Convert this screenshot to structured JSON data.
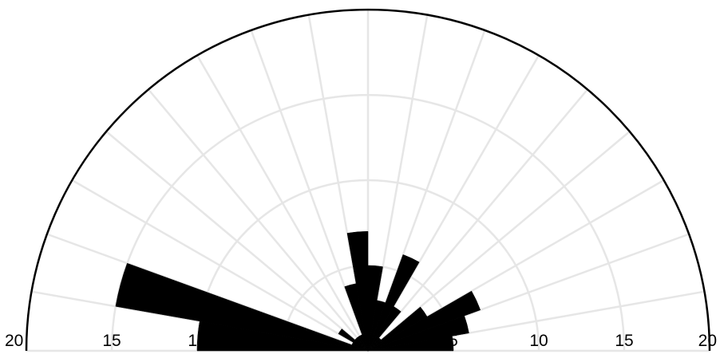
{
  "chart_data": {
    "type": "polar-histogram",
    "theta_range_deg": [
      0,
      180
    ],
    "bin_width_deg": 10,
    "r_max": 20,
    "r_grid": [
      5,
      10,
      15,
      20
    ],
    "theta_grid_step_deg": 10,
    "grid": true,
    "tick_labels": [
      "20",
      "15",
      "10",
      "5",
      "0",
      "5",
      "10",
      "15",
      "20"
    ],
    "bins": [
      {
        "start": 0,
        "end": 10,
        "value": 5
      },
      {
        "start": 10,
        "end": 20,
        "value": 6
      },
      {
        "start": 20,
        "end": 30,
        "value": 7
      },
      {
        "start": 30,
        "end": 40,
        "value": 4
      },
      {
        "start": 40,
        "end": 50,
        "value": 1
      },
      {
        "start": 50,
        "end": 60,
        "value": 3
      },
      {
        "start": 60,
        "end": 70,
        "value": 6
      },
      {
        "start": 70,
        "end": 80,
        "value": 3
      },
      {
        "start": 80,
        "end": 90,
        "value": 5
      },
      {
        "start": 90,
        "end": 100,
        "value": 7
      },
      {
        "start": 100,
        "end": 110,
        "value": 4
      },
      {
        "start": 110,
        "end": 120,
        "value": 1
      },
      {
        "start": 120,
        "end": 130,
        "value": 1
      },
      {
        "start": 130,
        "end": 140,
        "value": 1
      },
      {
        "start": 140,
        "end": 150,
        "value": 2
      },
      {
        "start": 150,
        "end": 160,
        "value": 1
      },
      {
        "start": 160,
        "end": 170,
        "value": 15
      },
      {
        "start": 170,
        "end": 180,
        "value": 10
      }
    ],
    "colors": {
      "bar": "#000000",
      "grid": "#e6e6e6",
      "outline": "#000000"
    }
  }
}
